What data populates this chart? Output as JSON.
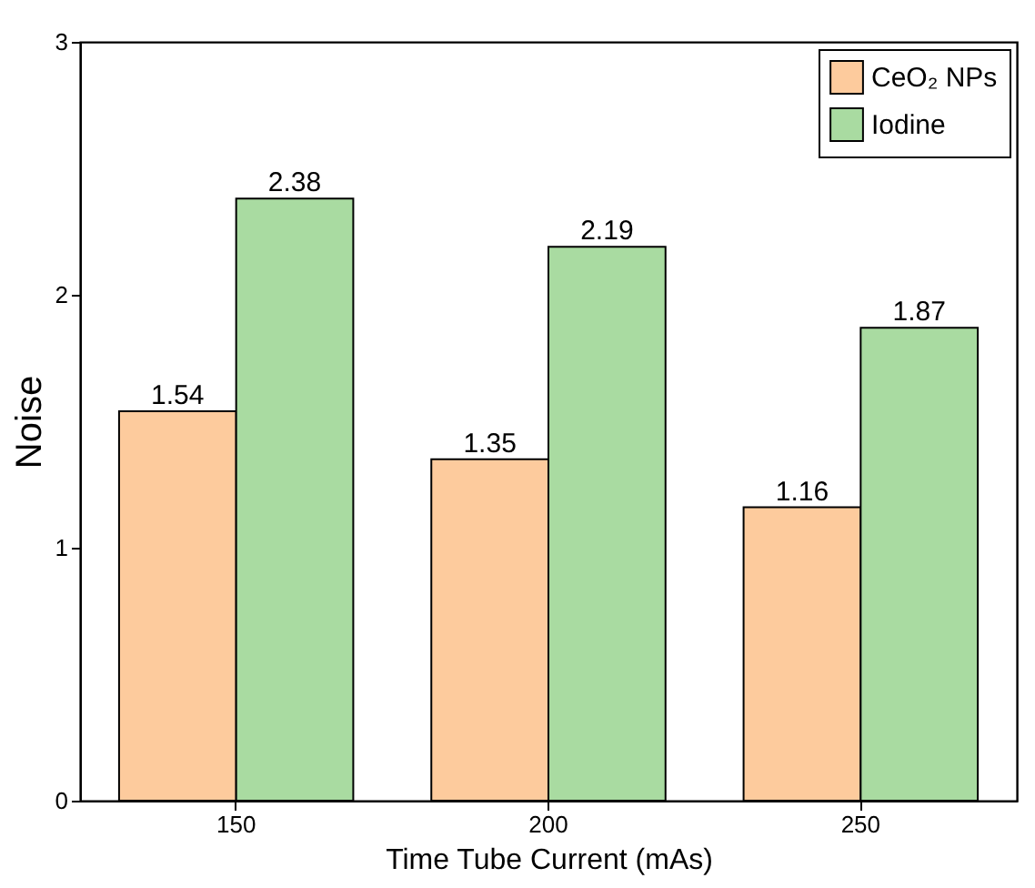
{
  "chart_data": {
    "type": "bar",
    "xlabel": "Time Tube Current (mAs)",
    "ylabel": "Noise",
    "categories": [
      "150",
      "200",
      "250"
    ],
    "series": [
      {
        "name": "CeO₂ NPs",
        "color": "#fdcb9d",
        "values": [
          1.54,
          1.35,
          1.16
        ]
      },
      {
        "name": "Iodine",
        "color": "#a9dba1",
        "values": [
          2.38,
          2.19,
          1.87
        ]
      }
    ],
    "ylim": [
      0,
      3
    ],
    "yticks": [
      0,
      1,
      2,
      3
    ],
    "grid": false,
    "legend": "top right",
    "data_labels": true
  }
}
